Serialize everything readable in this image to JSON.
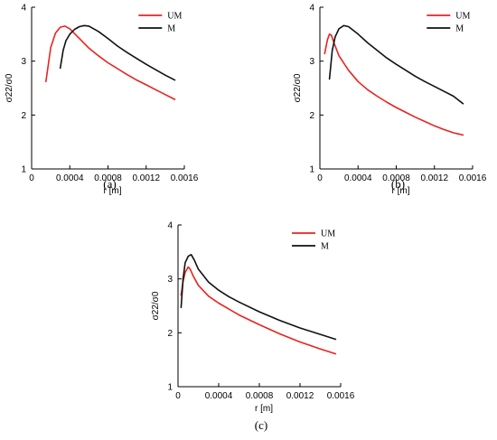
{
  "colors": {
    "UM": "#e8231f",
    "M": "#111111"
  },
  "chart_data": [
    {
      "type": "line",
      "panel_label": "(a)",
      "ylabel": "σ22/σ0",
      "xlabel": "r [m]",
      "xlim": [
        0,
        0.0016
      ],
      "ylim": [
        1,
        4
      ],
      "xticks": [
        "0",
        "0.0004",
        "0.0008",
        "0.0012",
        "0.0016"
      ],
      "yticks": [
        "1",
        "2",
        "3",
        "4"
      ],
      "legend": {
        "placement": "top-right"
      },
      "series": [
        {
          "name": "UM",
          "points": [
            [
              0.00015,
              2.62
            ],
            [
              0.0002,
              3.25
            ],
            [
              0.00025,
              3.52
            ],
            [
              0.0003,
              3.63
            ],
            [
              0.00035,
              3.65
            ],
            [
              0.0004,
              3.6
            ],
            [
              0.0005,
              3.42
            ],
            [
              0.0006,
              3.24
            ],
            [
              0.0007,
              3.1
            ],
            [
              0.0008,
              2.97
            ],
            [
              0.0009,
              2.86
            ],
            [
              0.001,
              2.75
            ],
            [
              0.0011,
              2.65
            ],
            [
              0.0012,
              2.56
            ],
            [
              0.0013,
              2.47
            ],
            [
              0.0014,
              2.38
            ],
            [
              0.0015,
              2.29
            ]
          ]
        },
        {
          "name": "M",
          "points": [
            [
              0.0003,
              2.87
            ],
            [
              0.00033,
              3.2
            ],
            [
              0.00036,
              3.38
            ],
            [
              0.0004,
              3.5
            ],
            [
              0.00045,
              3.59
            ],
            [
              0.0005,
              3.64
            ],
            [
              0.00055,
              3.66
            ],
            [
              0.0006,
              3.65
            ],
            [
              0.0007,
              3.55
            ],
            [
              0.0008,
              3.42
            ],
            [
              0.0009,
              3.28
            ],
            [
              0.001,
              3.16
            ],
            [
              0.0011,
              3.05
            ],
            [
              0.0012,
              2.94
            ],
            [
              0.0013,
              2.84
            ],
            [
              0.0014,
              2.74
            ],
            [
              0.0015,
              2.65
            ]
          ]
        }
      ]
    },
    {
      "type": "line",
      "panel_label": "(b)",
      "ylabel": "σ22/σ0",
      "xlabel": "r [m]",
      "xlim": [
        0,
        0.0016
      ],
      "ylim": [
        1,
        4
      ],
      "xticks": [
        "0",
        "0.0004",
        "0.0008",
        "0.0012",
        "0.0016"
      ],
      "yticks": [
        "1",
        "2",
        "3",
        "4"
      ],
      "legend": {
        "placement": "top-right"
      },
      "series": [
        {
          "name": "UM",
          "points": [
            [
              5e-05,
              3.14
            ],
            [
              8e-05,
              3.4
            ],
            [
              0.0001,
              3.5
            ],
            [
              0.00012,
              3.48
            ],
            [
              0.00015,
              3.33
            ],
            [
              0.0002,
              3.1
            ],
            [
              0.0003,
              2.83
            ],
            [
              0.0004,
              2.62
            ],
            [
              0.0005,
              2.47
            ],
            [
              0.0006,
              2.35
            ],
            [
              0.0007,
              2.24
            ],
            [
              0.0008,
              2.14
            ],
            [
              0.0009,
              2.05
            ],
            [
              0.001,
              1.96
            ],
            [
              0.0011,
              1.88
            ],
            [
              0.0012,
              1.8
            ],
            [
              0.0013,
              1.73
            ],
            [
              0.0014,
              1.67
            ],
            [
              0.0015,
              1.63
            ]
          ]
        },
        {
          "name": "M",
          "points": [
            [
              0.0001,
              2.67
            ],
            [
              0.00013,
              3.2
            ],
            [
              0.00016,
              3.45
            ],
            [
              0.0002,
              3.6
            ],
            [
              0.00025,
              3.66
            ],
            [
              0.0003,
              3.64
            ],
            [
              0.0004,
              3.5
            ],
            [
              0.0005,
              3.34
            ],
            [
              0.0006,
              3.2
            ],
            [
              0.0007,
              3.06
            ],
            [
              0.0008,
              2.94
            ],
            [
              0.0009,
              2.83
            ],
            [
              0.001,
              2.72
            ],
            [
              0.0011,
              2.62
            ],
            [
              0.0012,
              2.53
            ],
            [
              0.0013,
              2.44
            ],
            [
              0.0014,
              2.35
            ],
            [
              0.0015,
              2.21
            ]
          ]
        }
      ]
    },
    {
      "type": "line",
      "panel_label": "(c)",
      "ylabel": "σ22/σ0",
      "xlabel": "r [m]",
      "xlim": [
        0,
        0.0016
      ],
      "ylim": [
        1,
        4
      ],
      "xticks": [
        "0",
        "0.0004",
        "0.0008",
        "0.0012",
        "0.0016"
      ],
      "yticks": [
        "1",
        "2",
        "3",
        "4"
      ],
      "legend": {
        "placement": "top-right"
      },
      "series": [
        {
          "name": "UM",
          "points": [
            [
              3e-05,
              2.7
            ],
            [
              5e-05,
              2.95
            ],
            [
              7e-05,
              3.12
            ],
            [
              0.0001,
              3.22
            ],
            [
              0.00012,
              3.18
            ],
            [
              0.00015,
              3.05
            ],
            [
              0.0002,
              2.88
            ],
            [
              0.0003,
              2.68
            ],
            [
              0.0004,
              2.55
            ],
            [
              0.0005,
              2.44
            ],
            [
              0.0006,
              2.33
            ],
            [
              0.0008,
              2.15
            ],
            [
              0.001,
              1.98
            ],
            [
              0.0012,
              1.83
            ],
            [
              0.0014,
              1.7
            ],
            [
              0.00155,
              1.61
            ]
          ]
        },
        {
          "name": "M",
          "points": [
            [
              3e-05,
              2.47
            ],
            [
              5e-05,
              3.0
            ],
            [
              7e-05,
              3.3
            ],
            [
              0.0001,
              3.42
            ],
            [
              0.00013,
              3.45
            ],
            [
              0.00016,
              3.35
            ],
            [
              0.0002,
              3.18
            ],
            [
              0.0003,
              2.94
            ],
            [
              0.0004,
              2.79
            ],
            [
              0.0005,
              2.67
            ],
            [
              0.0006,
              2.57
            ],
            [
              0.0008,
              2.39
            ],
            [
              0.001,
              2.23
            ],
            [
              0.0012,
              2.09
            ],
            [
              0.0014,
              1.97
            ],
            [
              0.00155,
              1.88
            ]
          ]
        }
      ]
    }
  ]
}
